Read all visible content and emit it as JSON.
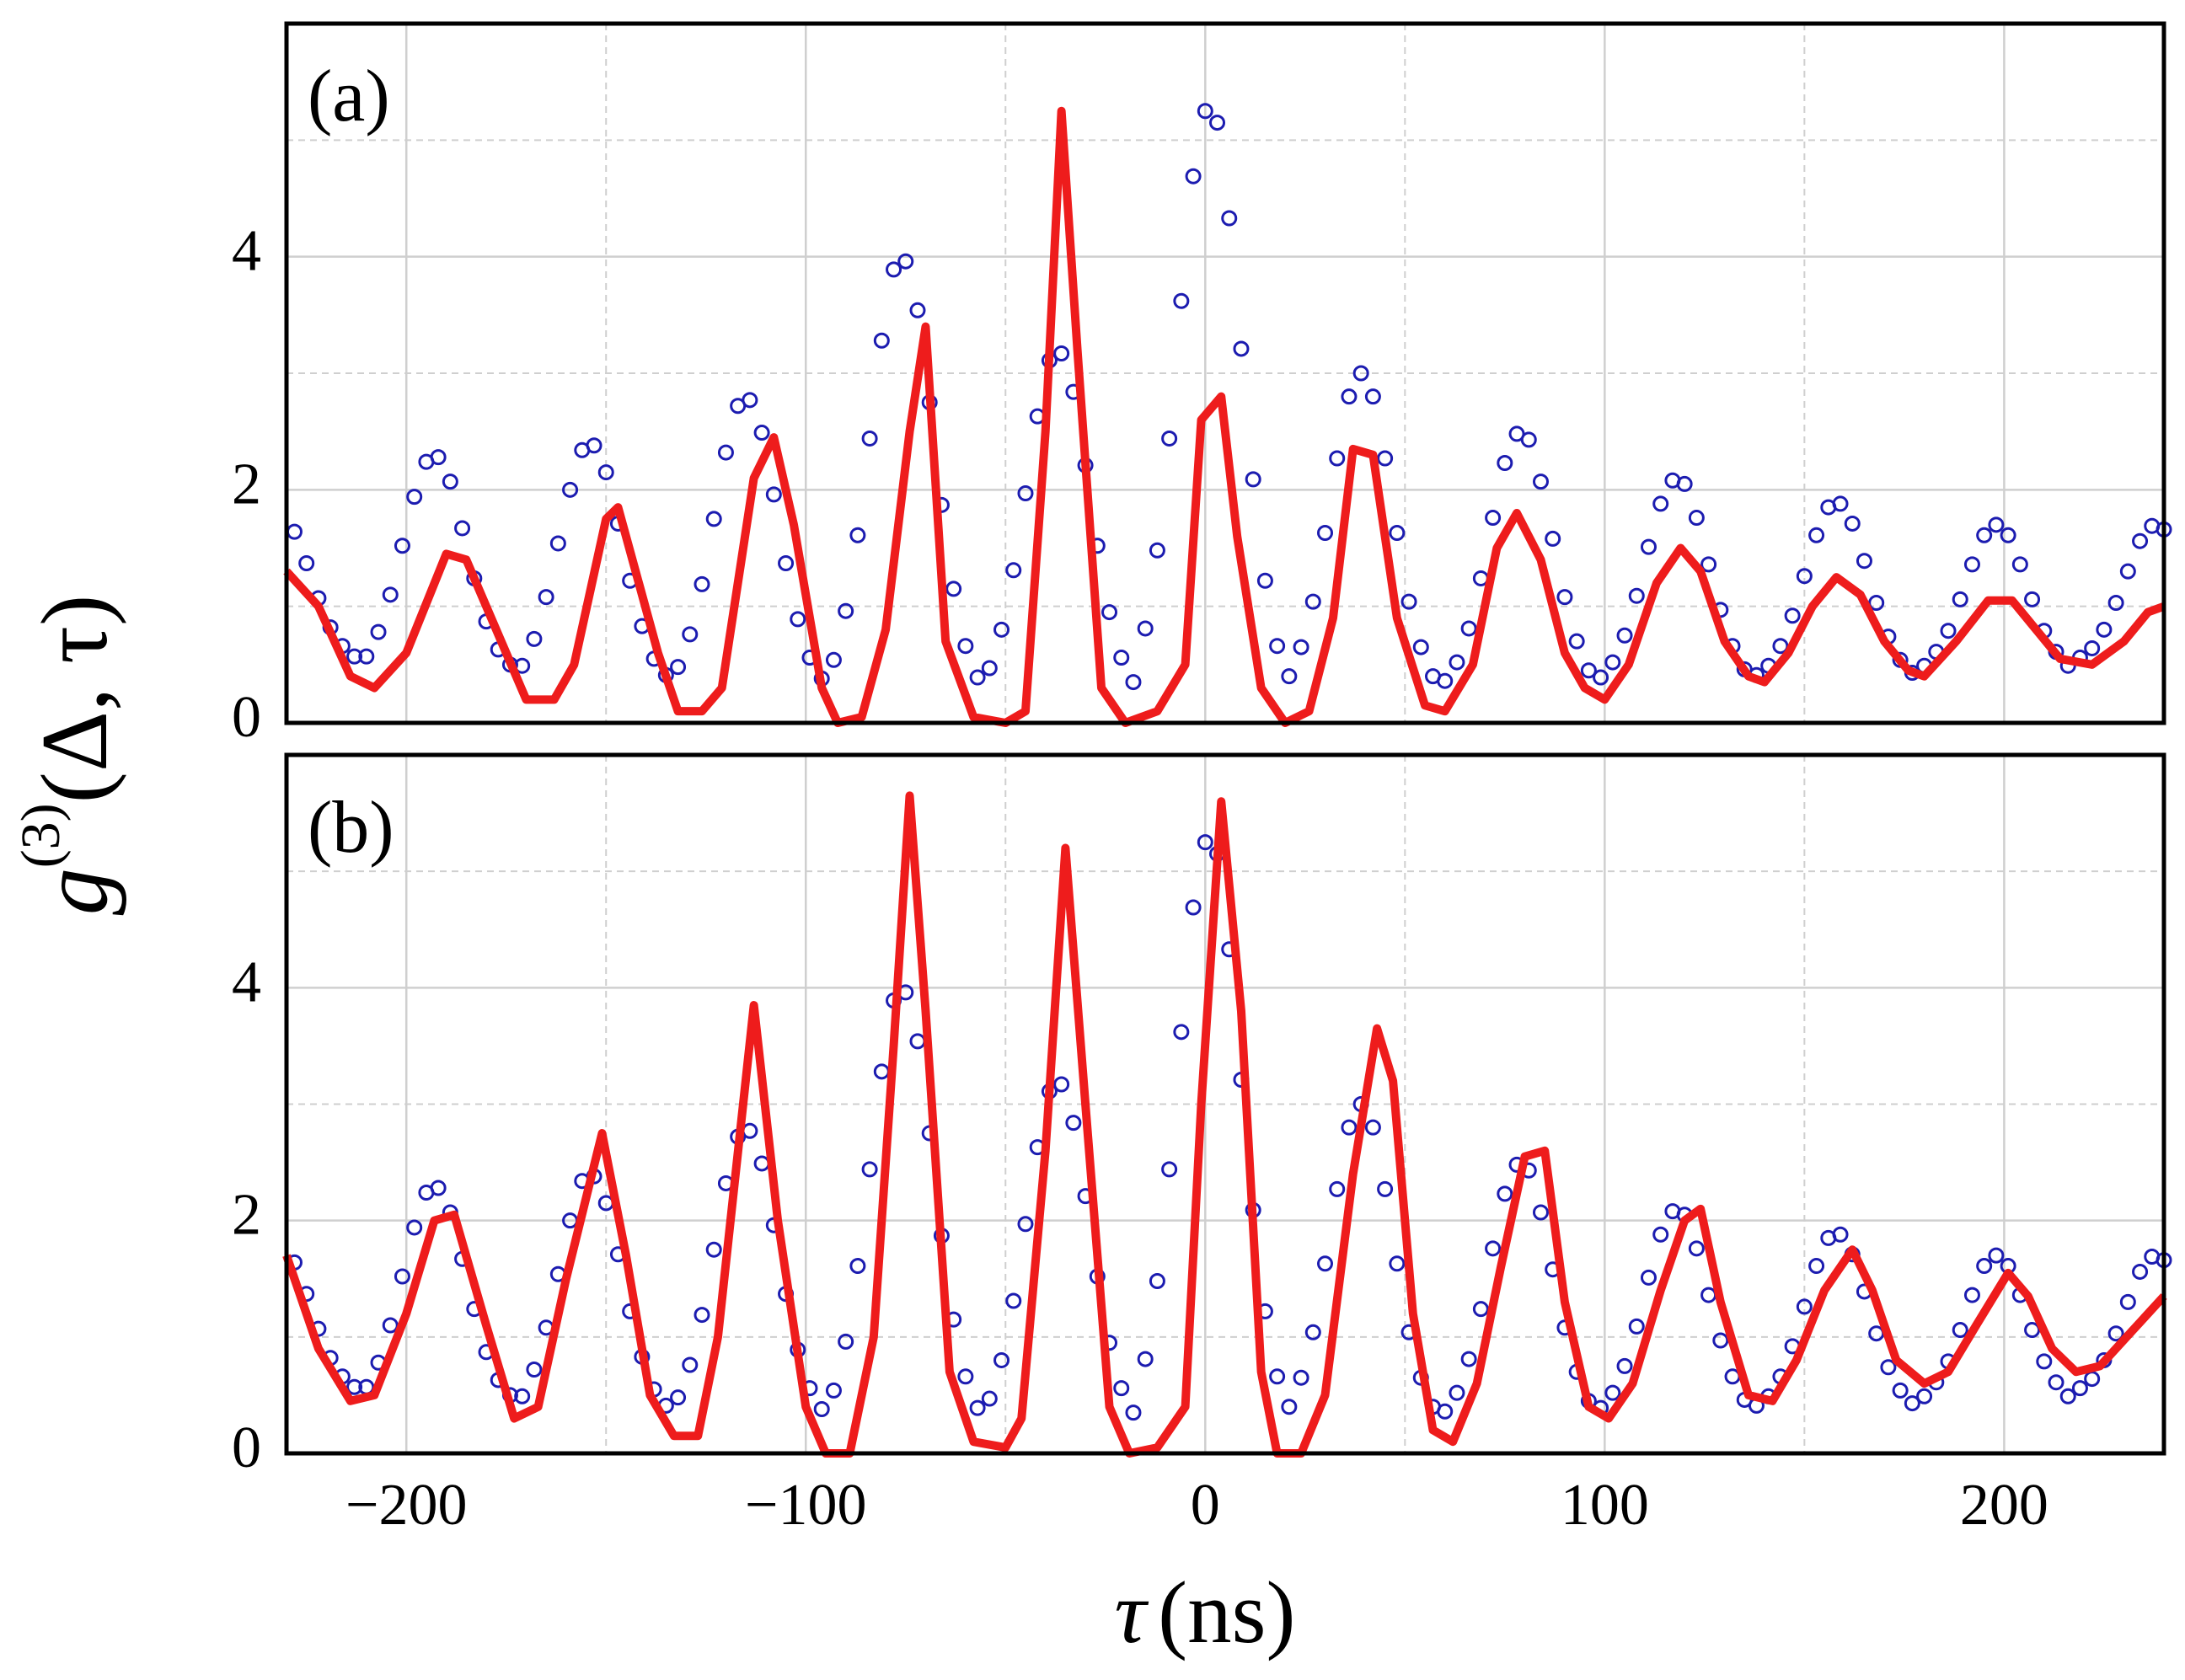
{
  "chart_data": [
    {
      "type": "line",
      "annotation": "(a)",
      "ylabel": {
        "base": "g",
        "sup": "(3)",
        "rest": "(Δ, τ)"
      },
      "xlim": [
        -230,
        240
      ],
      "ylim": [
        0,
        6
      ],
      "xticks": [
        -200,
        -100,
        0,
        100,
        200
      ],
      "xminor": [
        -150,
        -50,
        50,
        150
      ],
      "yticks": [
        0,
        2,
        4
      ],
      "yminor": [
        1,
        3,
        5
      ],
      "grid": true,
      "series": [
        {
          "type": "scatter",
          "color": "#1c1cb0",
          "x": [
            -228,
            -225,
            -222,
            -219,
            -216,
            -213,
            -210,
            -207,
            -204,
            -201,
            -198,
            -195,
            -192,
            -189,
            -186,
            -183,
            -180,
            -177,
            -174,
            -171,
            -168,
            -165,
            -162,
            -159,
            -156,
            -153,
            -150,
            -147,
            -144,
            -141,
            -138,
            -135,
            -132,
            -129,
            -126,
            -123,
            -120,
            -117,
            -114,
            -111,
            -108,
            -105,
            -102,
            -99,
            -96,
            -93,
            -90,
            -87,
            -84,
            -81,
            -78,
            -75,
            -72,
            -69,
            -66,
            -63,
            -60,
            -57,
            -54,
            -51,
            -48,
            -45,
            -42,
            -39,
            -36,
            -33,
            -30,
            -27,
            -24,
            -21,
            -18,
            -15,
            -12,
            -9,
            -6,
            -3,
            0,
            3,
            6,
            9,
            12,
            15,
            18,
            21,
            24,
            27,
            30,
            33,
            36,
            39,
            42,
            45,
            48,
            51,
            54,
            57,
            60,
            63,
            66,
            69,
            72,
            75,
            78,
            81,
            84,
            87,
            90,
            93,
            96,
            99,
            102,
            105,
            108,
            111,
            114,
            117,
            120,
            123,
            126,
            129,
            132,
            135,
            138,
            141,
            144,
            147,
            150,
            153,
            156,
            159,
            162,
            165,
            168,
            171,
            174,
            177,
            180,
            183,
            186,
            189,
            192,
            195,
            198,
            201,
            204,
            207,
            210,
            213,
            216,
            219,
            222,
            225,
            228,
            231,
            234,
            237,
            240
          ],
          "values": [
            1.64,
            1.37,
            1.07,
            0.82,
            0.66,
            0.57,
            0.57,
            0.78,
            1.1,
            1.52,
            1.94,
            2.24,
            2.28,
            2.07,
            1.67,
            1.24,
            0.87,
            0.63,
            0.5,
            0.49,
            0.72,
            1.08,
            1.54,
            2.0,
            2.34,
            2.38,
            2.15,
            1.71,
            1.22,
            0.83,
            0.55,
            0.41,
            0.48,
            0.76,
            1.19,
            1.75,
            2.32,
            2.72,
            2.77,
            2.49,
            1.96,
            1.37,
            0.89,
            0.56,
            0.38,
            0.54,
            0.96,
            1.61,
            2.44,
            3.28,
            3.89,
            3.96,
            3.54,
            2.75,
            1.87,
            1.15,
            0.66,
            0.39,
            0.47,
            0.8,
            1.31,
            1.97,
            2.63,
            3.11,
            3.17,
            2.84,
            2.21,
            1.52,
            0.95,
            0.56,
            0.35,
            0.81,
            1.48,
            2.44,
            3.62,
            4.69,
            5.25,
            5.15,
            4.33,
            3.21,
            2.09,
            1.22,
            0.66,
            0.4,
            0.65,
            1.04,
            1.63,
            2.27,
            2.8,
            3.0,
            2.8,
            2.27,
            1.63,
            1.04,
            0.65,
            0.4,
            0.36,
            0.52,
            0.81,
            1.24,
            1.76,
            2.23,
            2.48,
            2.43,
            2.07,
            1.58,
            1.08,
            0.7,
            0.45,
            0.39,
            0.52,
            0.75,
            1.09,
            1.51,
            1.88,
            2.08,
            2.05,
            1.76,
            1.36,
            0.97,
            0.66,
            0.46,
            0.41,
            0.49,
            0.66,
            0.92,
            1.26,
            1.61,
            1.85,
            1.88,
            1.71,
            1.39,
            1.03,
            0.74,
            0.54,
            0.43,
            0.49,
            0.61,
            0.79,
            1.06,
            1.36,
            1.61,
            1.7,
            1.61,
            1.36,
            1.06,
            0.79,
            0.61,
            0.49,
            0.56,
            0.64,
            0.8,
            1.03,
            1.3,
            1.56,
            1.69,
            1.66
          ]
        },
        {
          "type": "line",
          "color": "#ee1c1c",
          "x": [
            -230,
            -222,
            -214,
            -208,
            -200,
            -190,
            -185,
            -175,
            -170,
            -163,
            -158,
            -150,
            -147,
            -137,
            -132,
            -126,
            -121,
            -113,
            -108,
            -103,
            -96,
            -92,
            -86,
            -80,
            -74,
            -70,
            -65,
            -58,
            -50,
            -45,
            -40,
            -36,
            -32,
            -26,
            -20,
            -12,
            -5,
            -1,
            4,
            8,
            14,
            20,
            26,
            32,
            37,
            42,
            48,
            55,
            60,
            67,
            73,
            78,
            84,
            90,
            95,
            100,
            106,
            113,
            119,
            124,
            130,
            136,
            140,
            146,
            152,
            158,
            164,
            170,
            176,
            180,
            188,
            196,
            202,
            208,
            214,
            222,
            230,
            236,
            240
          ],
          "values": [
            1.3,
            1.0,
            0.4,
            0.3,
            0.6,
            1.45,
            1.4,
            0.6,
            0.2,
            0.2,
            0.5,
            1.75,
            1.85,
            0.6,
            0.1,
            0.1,
            0.3,
            2.1,
            2.45,
            1.7,
            0.3,
            0,
            0.05,
            0.8,
            2.5,
            3.4,
            0.7,
            0.05,
            0,
            0.1,
            2.5,
            5.25,
            3.2,
            0.3,
            0,
            0.1,
            0.5,
            2.6,
            2.8,
            1.6,
            0.3,
            0,
            0.1,
            0.9,
            2.35,
            2.3,
            0.9,
            0.15,
            0.1,
            0.5,
            1.5,
            1.8,
            1.4,
            0.6,
            0.3,
            0.2,
            0.5,
            1.2,
            1.5,
            1.3,
            0.7,
            0.4,
            0.35,
            0.6,
            1.0,
            1.25,
            1.1,
            0.7,
            0.45,
            0.4,
            0.7,
            1.05,
            1.05,
            0.8,
            0.55,
            0.5,
            0.7,
            0.95,
            1.0
          ]
        }
      ]
    },
    {
      "type": "line",
      "annotation": "(b)",
      "xlabel": {
        "sym": "τ",
        "unit": "(ns)"
      },
      "xlim": [
        -230,
        240
      ],
      "ylim": [
        0,
        6
      ],
      "xticks": [
        {
          "value": -200,
          "label": "−200"
        },
        {
          "value": -100,
          "label": "−100"
        },
        0,
        100,
        200
      ],
      "xminor": [
        -150,
        -50,
        50,
        150
      ],
      "yticks": [
        0,
        2,
        4
      ],
      "yminor": [
        1,
        3,
        5
      ],
      "grid": true,
      "series": [
        {
          "type": "scatter",
          "color": "#1c1cb0",
          "x": [
            -228,
            -225,
            -222,
            -219,
            -216,
            -213,
            -210,
            -207,
            -204,
            -201,
            -198,
            -195,
            -192,
            -189,
            -186,
            -183,
            -180,
            -177,
            -174,
            -171,
            -168,
            -165,
            -162,
            -159,
            -156,
            -153,
            -150,
            -147,
            -144,
            -141,
            -138,
            -135,
            -132,
            -129,
            -126,
            -123,
            -120,
            -117,
            -114,
            -111,
            -108,
            -105,
            -102,
            -99,
            -96,
            -93,
            -90,
            -87,
            -84,
            -81,
            -78,
            -75,
            -72,
            -69,
            -66,
            -63,
            -60,
            -57,
            -54,
            -51,
            -48,
            -45,
            -42,
            -39,
            -36,
            -33,
            -30,
            -27,
            -24,
            -21,
            -18,
            -15,
            -12,
            -9,
            -6,
            -3,
            0,
            3,
            6,
            9,
            12,
            15,
            18,
            21,
            24,
            27,
            30,
            33,
            36,
            39,
            42,
            45,
            48,
            51,
            54,
            57,
            60,
            63,
            66,
            69,
            72,
            75,
            78,
            81,
            84,
            87,
            90,
            93,
            96,
            99,
            102,
            105,
            108,
            111,
            114,
            117,
            120,
            123,
            126,
            129,
            132,
            135,
            138,
            141,
            144,
            147,
            150,
            153,
            156,
            159,
            162,
            165,
            168,
            171,
            174,
            177,
            180,
            183,
            186,
            189,
            192,
            195,
            198,
            201,
            204,
            207,
            210,
            213,
            216,
            219,
            222,
            225,
            228,
            231,
            234,
            237,
            240
          ],
          "values": [
            1.64,
            1.37,
            1.07,
            0.82,
            0.66,
            0.57,
            0.57,
            0.78,
            1.1,
            1.52,
            1.94,
            2.24,
            2.28,
            2.07,
            1.67,
            1.24,
            0.87,
            0.63,
            0.5,
            0.49,
            0.72,
            1.08,
            1.54,
            2.0,
            2.34,
            2.38,
            2.15,
            1.71,
            1.22,
            0.83,
            0.55,
            0.41,
            0.48,
            0.76,
            1.19,
            1.75,
            2.32,
            2.72,
            2.77,
            2.49,
            1.96,
            1.37,
            0.89,
            0.56,
            0.38,
            0.54,
            0.96,
            1.61,
            2.44,
            3.28,
            3.89,
            3.96,
            3.54,
            2.75,
            1.87,
            1.15,
            0.66,
            0.39,
            0.47,
            0.8,
            1.31,
            1.97,
            2.63,
            3.11,
            3.17,
            2.84,
            2.21,
            1.52,
            0.95,
            0.56,
            0.35,
            0.81,
            1.48,
            2.44,
            3.62,
            4.69,
            5.25,
            5.15,
            4.33,
            3.21,
            2.09,
            1.22,
            0.66,
            0.4,
            0.65,
            1.04,
            1.63,
            2.27,
            2.8,
            3.0,
            2.8,
            2.27,
            1.63,
            1.04,
            0.65,
            0.4,
            0.36,
            0.52,
            0.81,
            1.24,
            1.76,
            2.23,
            2.48,
            2.43,
            2.07,
            1.58,
            1.08,
            0.7,
            0.45,
            0.39,
            0.52,
            0.75,
            1.09,
            1.51,
            1.88,
            2.08,
            2.05,
            1.76,
            1.36,
            0.97,
            0.66,
            0.46,
            0.41,
            0.49,
            0.66,
            0.92,
            1.26,
            1.61,
            1.85,
            1.88,
            1.71,
            1.39,
            1.03,
            0.74,
            0.54,
            0.43,
            0.49,
            0.61,
            0.79,
            1.06,
            1.36,
            1.61,
            1.7,
            1.61,
            1.36,
            1.06,
            0.79,
            0.61,
            0.49,
            0.56,
            0.64,
            0.8,
            1.03,
            1.3,
            1.56,
            1.69,
            1.66
          ]
        },
        {
          "type": "line",
          "color": "#ee1c1c",
          "x": [
            -230,
            -222,
            -214,
            -208,
            -200,
            -193,
            -188,
            -180,
            -173,
            -167,
            -160,
            -151,
            -145,
            -139,
            -133,
            -127,
            -122,
            -113,
            -107,
            -100,
            -95,
            -89,
            -83,
            -78,
            -74,
            -70,
            -64,
            -58,
            -50,
            -46,
            -40,
            -35,
            -30,
            -24,
            -19,
            -12,
            -5,
            -1,
            4,
            9,
            14,
            18,
            24,
            30,
            37,
            43,
            47,
            52,
            57,
            62,
            68,
            74,
            80,
            85,
            90,
            96,
            101,
            107,
            114,
            120,
            124,
            129,
            136,
            142,
            148,
            155,
            162,
            167,
            173,
            180,
            186,
            193,
            201,
            206,
            212,
            218,
            224,
            232,
            240
          ],
          "values": [
            1.7,
            0.9,
            0.45,
            0.5,
            1.2,
            2.0,
            2.05,
            1.1,
            0.3,
            0.4,
            1.5,
            2.75,
            1.7,
            0.5,
            0.15,
            0.15,
            1.0,
            3.85,
            2.0,
            0.4,
            0,
            0,
            1.0,
            3.5,
            5.65,
            3.8,
            0.7,
            0.1,
            0.05,
            0.3,
            2.6,
            5.2,
            3.0,
            0.4,
            0,
            0.05,
            0.4,
            3.0,
            5.6,
            3.8,
            0.7,
            0,
            0,
            0.5,
            2.4,
            3.65,
            3.2,
            1.2,
            0.2,
            0.1,
            0.6,
            1.6,
            2.55,
            2.6,
            1.3,
            0.4,
            0.3,
            0.6,
            1.4,
            2.0,
            2.1,
            1.3,
            0.5,
            0.45,
            0.8,
            1.4,
            1.75,
            1.4,
            0.8,
            0.6,
            0.7,
            1.1,
            1.55,
            1.35,
            0.9,
            0.7,
            0.75,
            1.05,
            1.35
          ]
        }
      ]
    }
  ]
}
